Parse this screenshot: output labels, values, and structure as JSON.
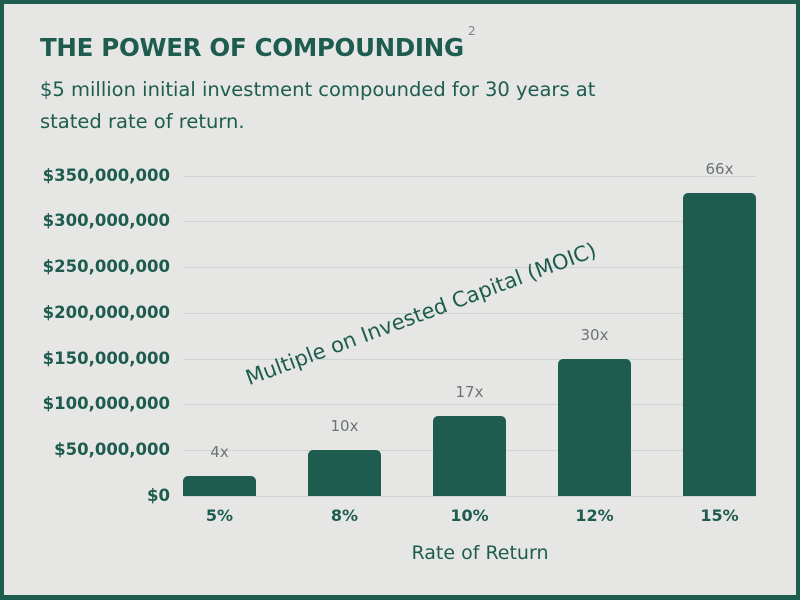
{
  "header": {
    "title": "THE POWER OF COMPOUNDING",
    "title_superscript": "2",
    "subtitle": "$5 million initial investment compounded for 30 years at stated rate of return."
  },
  "colors": {
    "primary": "#1e5c4f",
    "background": "#e6e7e5",
    "gridline": "#cdd3d1",
    "bar_label": "#6b7472"
  },
  "chart_data": {
    "type": "bar",
    "title": "THE POWER OF COMPOUNDING",
    "subtitle": "$5 million initial investment compounded for 30 years at stated rate of return.",
    "xlabel": "Rate of Return",
    "ylabel": "",
    "categories": [
      "5%",
      "8%",
      "10%",
      "12%",
      "15%"
    ],
    "values": [
      21600000,
      50300000,
      87200000,
      149800000,
      331100000
    ],
    "data_labels": [
      "4x",
      "10x",
      "17x",
      "30x",
      "66x"
    ],
    "annotation": "Multiple on Invested Capital (MOIC)",
    "ylim": [
      0,
      350000000
    ],
    "yticks": [
      0,
      50000000,
      100000000,
      150000000,
      200000000,
      250000000,
      300000000,
      350000000
    ],
    "ytick_labels": [
      "$0",
      "$50,000,000",
      "$100,000,000",
      "$150,000,000",
      "$200,000,000",
      "$250,000,000",
      "$300,000,000",
      "$350,000,000"
    ],
    "grid": true,
    "legend": null
  }
}
